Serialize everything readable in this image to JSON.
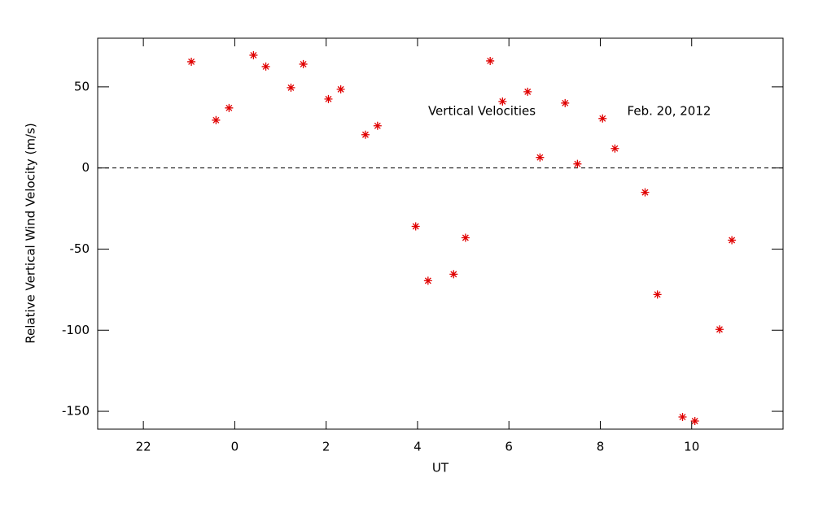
{
  "chart_data": {
    "type": "scatter",
    "annotations": [
      "Vertical Velocities",
      "Feb. 20, 2012"
    ],
    "x_label": "UT",
    "y_label": "Relative Vertical Wind Velocity (m/s)",
    "xlim": [
      -3,
      12
    ],
    "ylim": [
      -161,
      80
    ],
    "xticks": [
      {
        "value": -2,
        "label": "22"
      },
      0,
      2,
      4,
      6,
      8,
      10
    ],
    "yticks": [
      -150,
      -100,
      -50,
      0,
      50
    ],
    "reference_line": 0,
    "marker": "asterisk",
    "series": [
      {
        "color": "#e00000",
        "x": [
          -0.95,
          -0.41,
          -0.125,
          0.41,
          0.68,
          1.23,
          1.5,
          2.05,
          2.32,
          2.86,
          3.125,
          3.96,
          4.23,
          4.79,
          5.05,
          5.59,
          5.86,
          6.41,
          6.68,
          7.23,
          7.5,
          8.05,
          8.32,
          8.98,
          9.25,
          9.8,
          10.07,
          10.61,
          10.88
        ],
        "values": [
          65.5,
          29.5,
          37,
          69.5,
          62.5,
          49.5,
          64,
          42.5,
          48.5,
          20.5,
          26,
          -36,
          -69.5,
          -65.5,
          -43,
          66,
          41,
          47,
          6.5,
          40,
          2.5,
          30.5,
          12,
          -15,
          -78,
          -153.5,
          -156,
          -99.5,
          -44.5
        ]
      }
    ]
  }
}
